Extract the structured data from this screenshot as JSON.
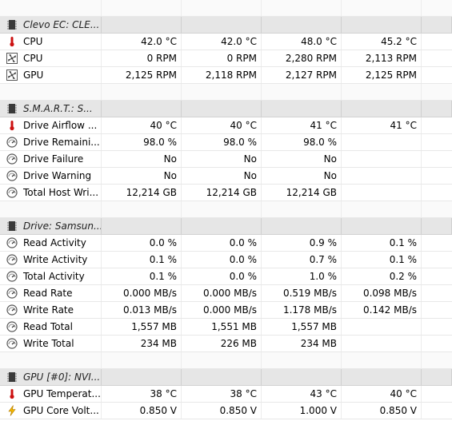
{
  "sensors": [
    {
      "type": "gap"
    },
    {
      "type": "header",
      "icon": "chip-icon",
      "label": "Clevo EC: CLE..."
    },
    {
      "type": "row",
      "icon": "thermometer-icon",
      "label": "CPU",
      "values": [
        "42.0 °C",
        "42.0 °C",
        "48.0 °C",
        "45.2 °C"
      ]
    },
    {
      "type": "row",
      "icon": "fan-icon",
      "label": "CPU",
      "values": [
        "0 RPM",
        "0 RPM",
        "2,280 RPM",
        "2,113 RPM"
      ]
    },
    {
      "type": "row",
      "icon": "fan-icon",
      "label": "GPU",
      "values": [
        "2,125 RPM",
        "2,118 RPM",
        "2,127 RPM",
        "2,125 RPM"
      ]
    },
    {
      "type": "gap"
    },
    {
      "type": "header",
      "icon": "chip-icon",
      "label": "S.M.A.R.T.: S..."
    },
    {
      "type": "row",
      "icon": "thermometer-icon",
      "label": "Drive Airflow ...",
      "values": [
        "40 °C",
        "40 °C",
        "41 °C",
        "41 °C"
      ]
    },
    {
      "type": "row",
      "icon": "gauge-icon",
      "label": "Drive Remaini...",
      "values": [
        "98.0 %",
        "98.0 %",
        "98.0 %",
        ""
      ]
    },
    {
      "type": "row",
      "icon": "gauge-icon",
      "label": "Drive Failure",
      "values": [
        "No",
        "No",
        "No",
        ""
      ]
    },
    {
      "type": "row",
      "icon": "gauge-icon",
      "label": "Drive Warning",
      "values": [
        "No",
        "No",
        "No",
        ""
      ]
    },
    {
      "type": "row",
      "icon": "gauge-icon",
      "label": "Total Host Wri...",
      "values": [
        "12,214 GB",
        "12,214 GB",
        "12,214 GB",
        ""
      ]
    },
    {
      "type": "gap"
    },
    {
      "type": "header",
      "icon": "chip-icon",
      "label": "Drive: Samsun..."
    },
    {
      "type": "row",
      "icon": "gauge-icon",
      "label": "Read Activity",
      "values": [
        "0.0 %",
        "0.0 %",
        "0.9 %",
        "0.1 %"
      ]
    },
    {
      "type": "row",
      "icon": "gauge-icon",
      "label": "Write Activity",
      "values": [
        "0.1 %",
        "0.0 %",
        "0.7 %",
        "0.1 %"
      ]
    },
    {
      "type": "row",
      "icon": "gauge-icon",
      "label": "Total Activity",
      "values": [
        "0.1 %",
        "0.0 %",
        "1.0 %",
        "0.2 %"
      ]
    },
    {
      "type": "row",
      "icon": "gauge-icon",
      "label": "Read Rate",
      "values": [
        "0.000 MB/s",
        "0.000 MB/s",
        "0.519 MB/s",
        "0.098 MB/s"
      ]
    },
    {
      "type": "row",
      "icon": "gauge-icon",
      "label": "Write Rate",
      "values": [
        "0.013 MB/s",
        "0.000 MB/s",
        "1.178 MB/s",
        "0.142 MB/s"
      ]
    },
    {
      "type": "row",
      "icon": "gauge-icon",
      "label": "Read Total",
      "values": [
        "1,557 MB",
        "1,551 MB",
        "1,557 MB",
        ""
      ]
    },
    {
      "type": "row",
      "icon": "gauge-icon",
      "label": "Write Total",
      "values": [
        "234 MB",
        "226 MB",
        "234 MB",
        ""
      ]
    },
    {
      "type": "gap"
    },
    {
      "type": "header",
      "icon": "chip-icon",
      "label": "GPU [#0]: NVI..."
    },
    {
      "type": "row",
      "icon": "thermometer-icon",
      "label": "GPU Temperat...",
      "values": [
        "38 °C",
        "38 °C",
        "43 °C",
        "40 °C"
      ]
    },
    {
      "type": "row",
      "icon": "lightning-icon",
      "label": "GPU Core Volt...",
      "values": [
        "0.850 V",
        "0.850 V",
        "1.000 V",
        "0.850 V"
      ]
    }
  ]
}
